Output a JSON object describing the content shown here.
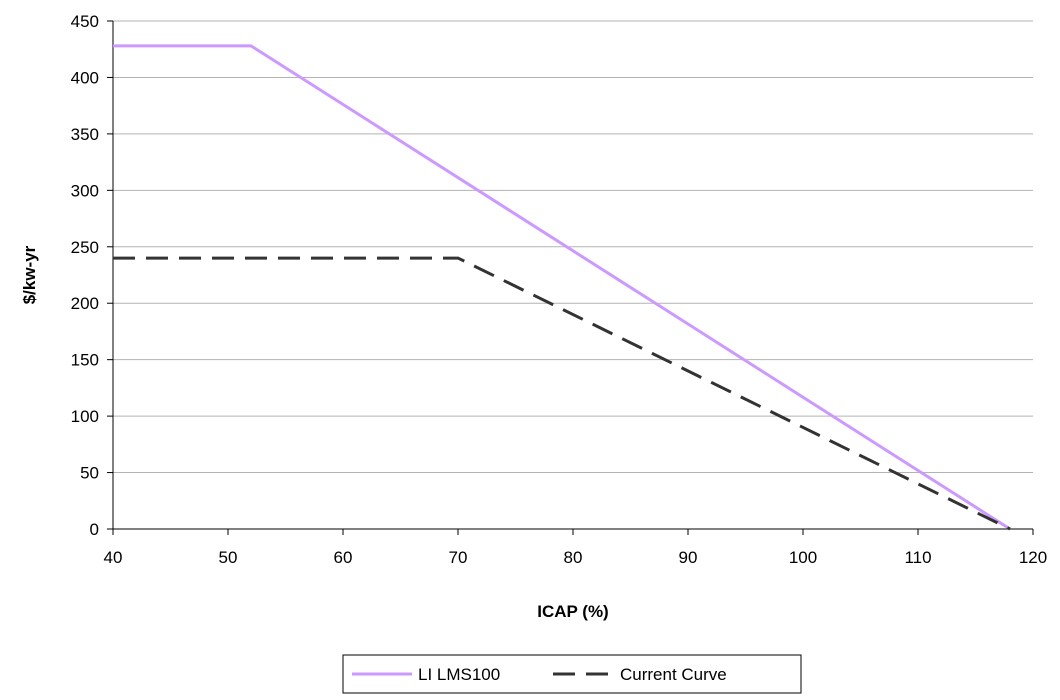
{
  "chart_data": {
    "type": "line",
    "title": "",
    "xlabel": "ICAP (%)",
    "ylabel": "$/kw-yr",
    "xlim": [
      40,
      120
    ],
    "ylim": [
      0,
      450
    ],
    "xticks": [
      40,
      50,
      60,
      70,
      80,
      90,
      100,
      110,
      120
    ],
    "yticks": [
      0,
      50,
      100,
      150,
      200,
      250,
      300,
      350,
      400,
      450
    ],
    "grid": "horizontal",
    "legend_position": "bottom",
    "series": [
      {
        "name": "LI LMS100",
        "color": "#cc99ff",
        "style": "solid",
        "points": [
          [
            40,
            428
          ],
          [
            52,
            428
          ],
          [
            118,
            0
          ]
        ]
      },
      {
        "name": "Current Curve",
        "color": "#333333",
        "style": "dashed",
        "points": [
          [
            40,
            240
          ],
          [
            70,
            240
          ],
          [
            118,
            0
          ]
        ]
      }
    ]
  }
}
